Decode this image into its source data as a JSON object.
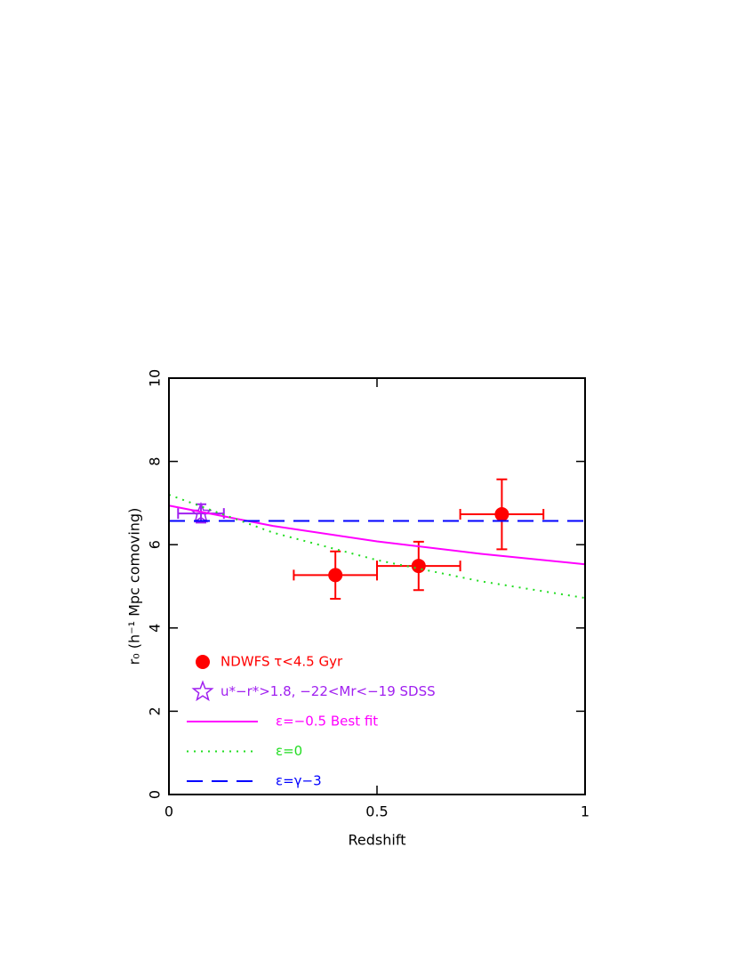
{
  "chart_data": {
    "type": "scatter",
    "xlabel": "Redshift",
    "ylabel": "r₀ (h⁻¹ Mpc comoving)",
    "xlim": [
      0,
      1
    ],
    "ylim": [
      0,
      10
    ],
    "xticks": [
      0,
      0.5,
      1
    ],
    "yticks": [
      0,
      2,
      4,
      6,
      8,
      10
    ],
    "legend": "lower left",
    "series": [
      {
        "name": "NDWFS τ<4.5 Gyr",
        "color": "#ff0000",
        "marker": "circle",
        "x": [
          0.4,
          0.6,
          0.8
        ],
        "values": [
          5.27,
          5.49,
          6.73
        ],
        "xerr": [
          0.1,
          0.1,
          0.1
        ],
        "yerr": [
          0.57,
          0.58,
          0.84
        ]
      },
      {
        "name": "u*−r*>1.8, −22<Mr<−19 SDSS",
        "color": "#a020f0",
        "marker": "star",
        "x": [
          0.077
        ],
        "values": [
          6.75
        ],
        "xerr": [
          0.055
        ],
        "yerr": [
          0.22
        ]
      },
      {
        "name": "ε=−0.5 Best fit",
        "color": "#ff00ff",
        "linestyle": "solid",
        "x": [
          0,
          0.25,
          0.5,
          0.75,
          1
        ],
        "values": [
          6.94,
          6.45,
          6.08,
          5.78,
          5.53
        ]
      },
      {
        "name": "ε=0",
        "color": "#22dd22",
        "linestyle": "dotted",
        "x": [
          0,
          0.25,
          0.5,
          0.75,
          1
        ],
        "values": [
          7.2,
          6.29,
          5.63,
          5.12,
          4.72
        ]
      },
      {
        "name": "ε=γ−3",
        "color": "#0000ff",
        "linestyle": "dashed",
        "x": [
          0,
          1
        ],
        "values": [
          6.57,
          6.57
        ]
      }
    ]
  }
}
